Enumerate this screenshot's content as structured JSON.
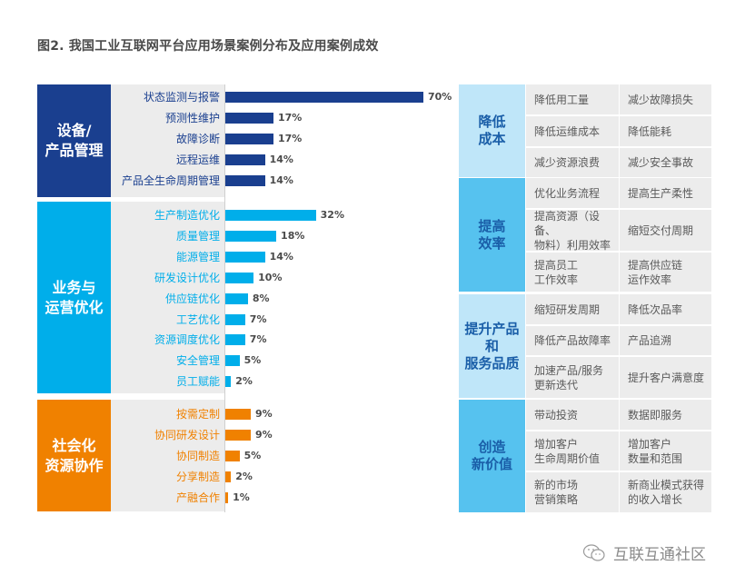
{
  "title": "图2. 我国工业互联网平台应用场景案例分布及应用案例成效",
  "colors": {
    "sec1": "#1a3f8f",
    "sec2": "#00aeea",
    "sec3": "#f08100",
    "panel_gray": "#ececec",
    "right_light": "#bfe6f9",
    "right_mid": "#56c2ef",
    "right_text": "#1a5ea8"
  },
  "chart_data": {
    "type": "bar",
    "orientation": "horizontal",
    "title": "图2. 我国工业互联网平台应用场景案例分布及应用案例成效",
    "unit": "%",
    "xlim": [
      0,
      70
    ],
    "groups": [
      {
        "name": "设备/\n产品管理",
        "categories": [
          "状态监测与报警",
          "预测性维护",
          "故障诊断",
          "远程运维",
          "产品全生命周期管理"
        ],
        "values": [
          70,
          17,
          17,
          14,
          14
        ],
        "labels": [
          "70%",
          "17%",
          "17%",
          "14%",
          "14%"
        ]
      },
      {
        "name": "业务与\n运营优化",
        "categories": [
          "生产制造优化",
          "质量管理",
          "能源管理",
          "研发设计优化",
          "供应链优化",
          "工艺优化",
          "资源调度优化",
          "安全管理",
          "员工赋能"
        ],
        "values": [
          32,
          18,
          14,
          10,
          8,
          7,
          7,
          5,
          2
        ],
        "labels": [
          "32%",
          "18%",
          "14%",
          "10%",
          "8%",
          "7%",
          "7%",
          "5%",
          "2%"
        ]
      },
      {
        "name": "社会化\n资源协作",
        "categories": [
          "按需定制",
          "协同研发设计",
          "协同制造",
          "分享制造",
          "产融合作"
        ],
        "values": [
          9,
          9,
          5,
          2,
          1
        ],
        "labels": [
          "9%",
          "9%",
          "5%",
          "2%",
          "1%"
        ]
      }
    ]
  },
  "effects": [
    {
      "name": "降低\n成本",
      "rows": [
        [
          "降低用工量",
          "减少故障损失"
        ],
        [
          "降低运维成本",
          "降低能耗"
        ],
        [
          "减少资源浪费",
          "减少安全事故"
        ]
      ]
    },
    {
      "name": "提高\n效率",
      "rows": [
        [
          "优化业务流程",
          "提高生产柔性"
        ],
        [
          "提高资源（设备、\n物料）利用效率",
          "缩短交付周期"
        ],
        [
          "提高员工\n工作效率",
          "提高供应链\n运作效率"
        ]
      ]
    },
    {
      "name": "提升产品\n和\n服务品质",
      "rows": [
        [
          "缩短研发周期",
          "降低次品率"
        ],
        [
          "降低产品故障率",
          "产品追溯"
        ],
        [
          "加速产品/服务\n更新迭代",
          "提升客户满意度"
        ]
      ]
    },
    {
      "name": "创造\n新价值",
      "rows": [
        [
          "带动投资",
          "数据即服务"
        ],
        [
          "增加客户\n生命周期价值",
          "增加客户\n数量和范围"
        ],
        [
          "新的市场\n营销策略",
          "新商业模式获得\n的收入增长"
        ]
      ]
    }
  ],
  "footer": {
    "icon": "wechat-icon",
    "text": "互联互通社区"
  }
}
